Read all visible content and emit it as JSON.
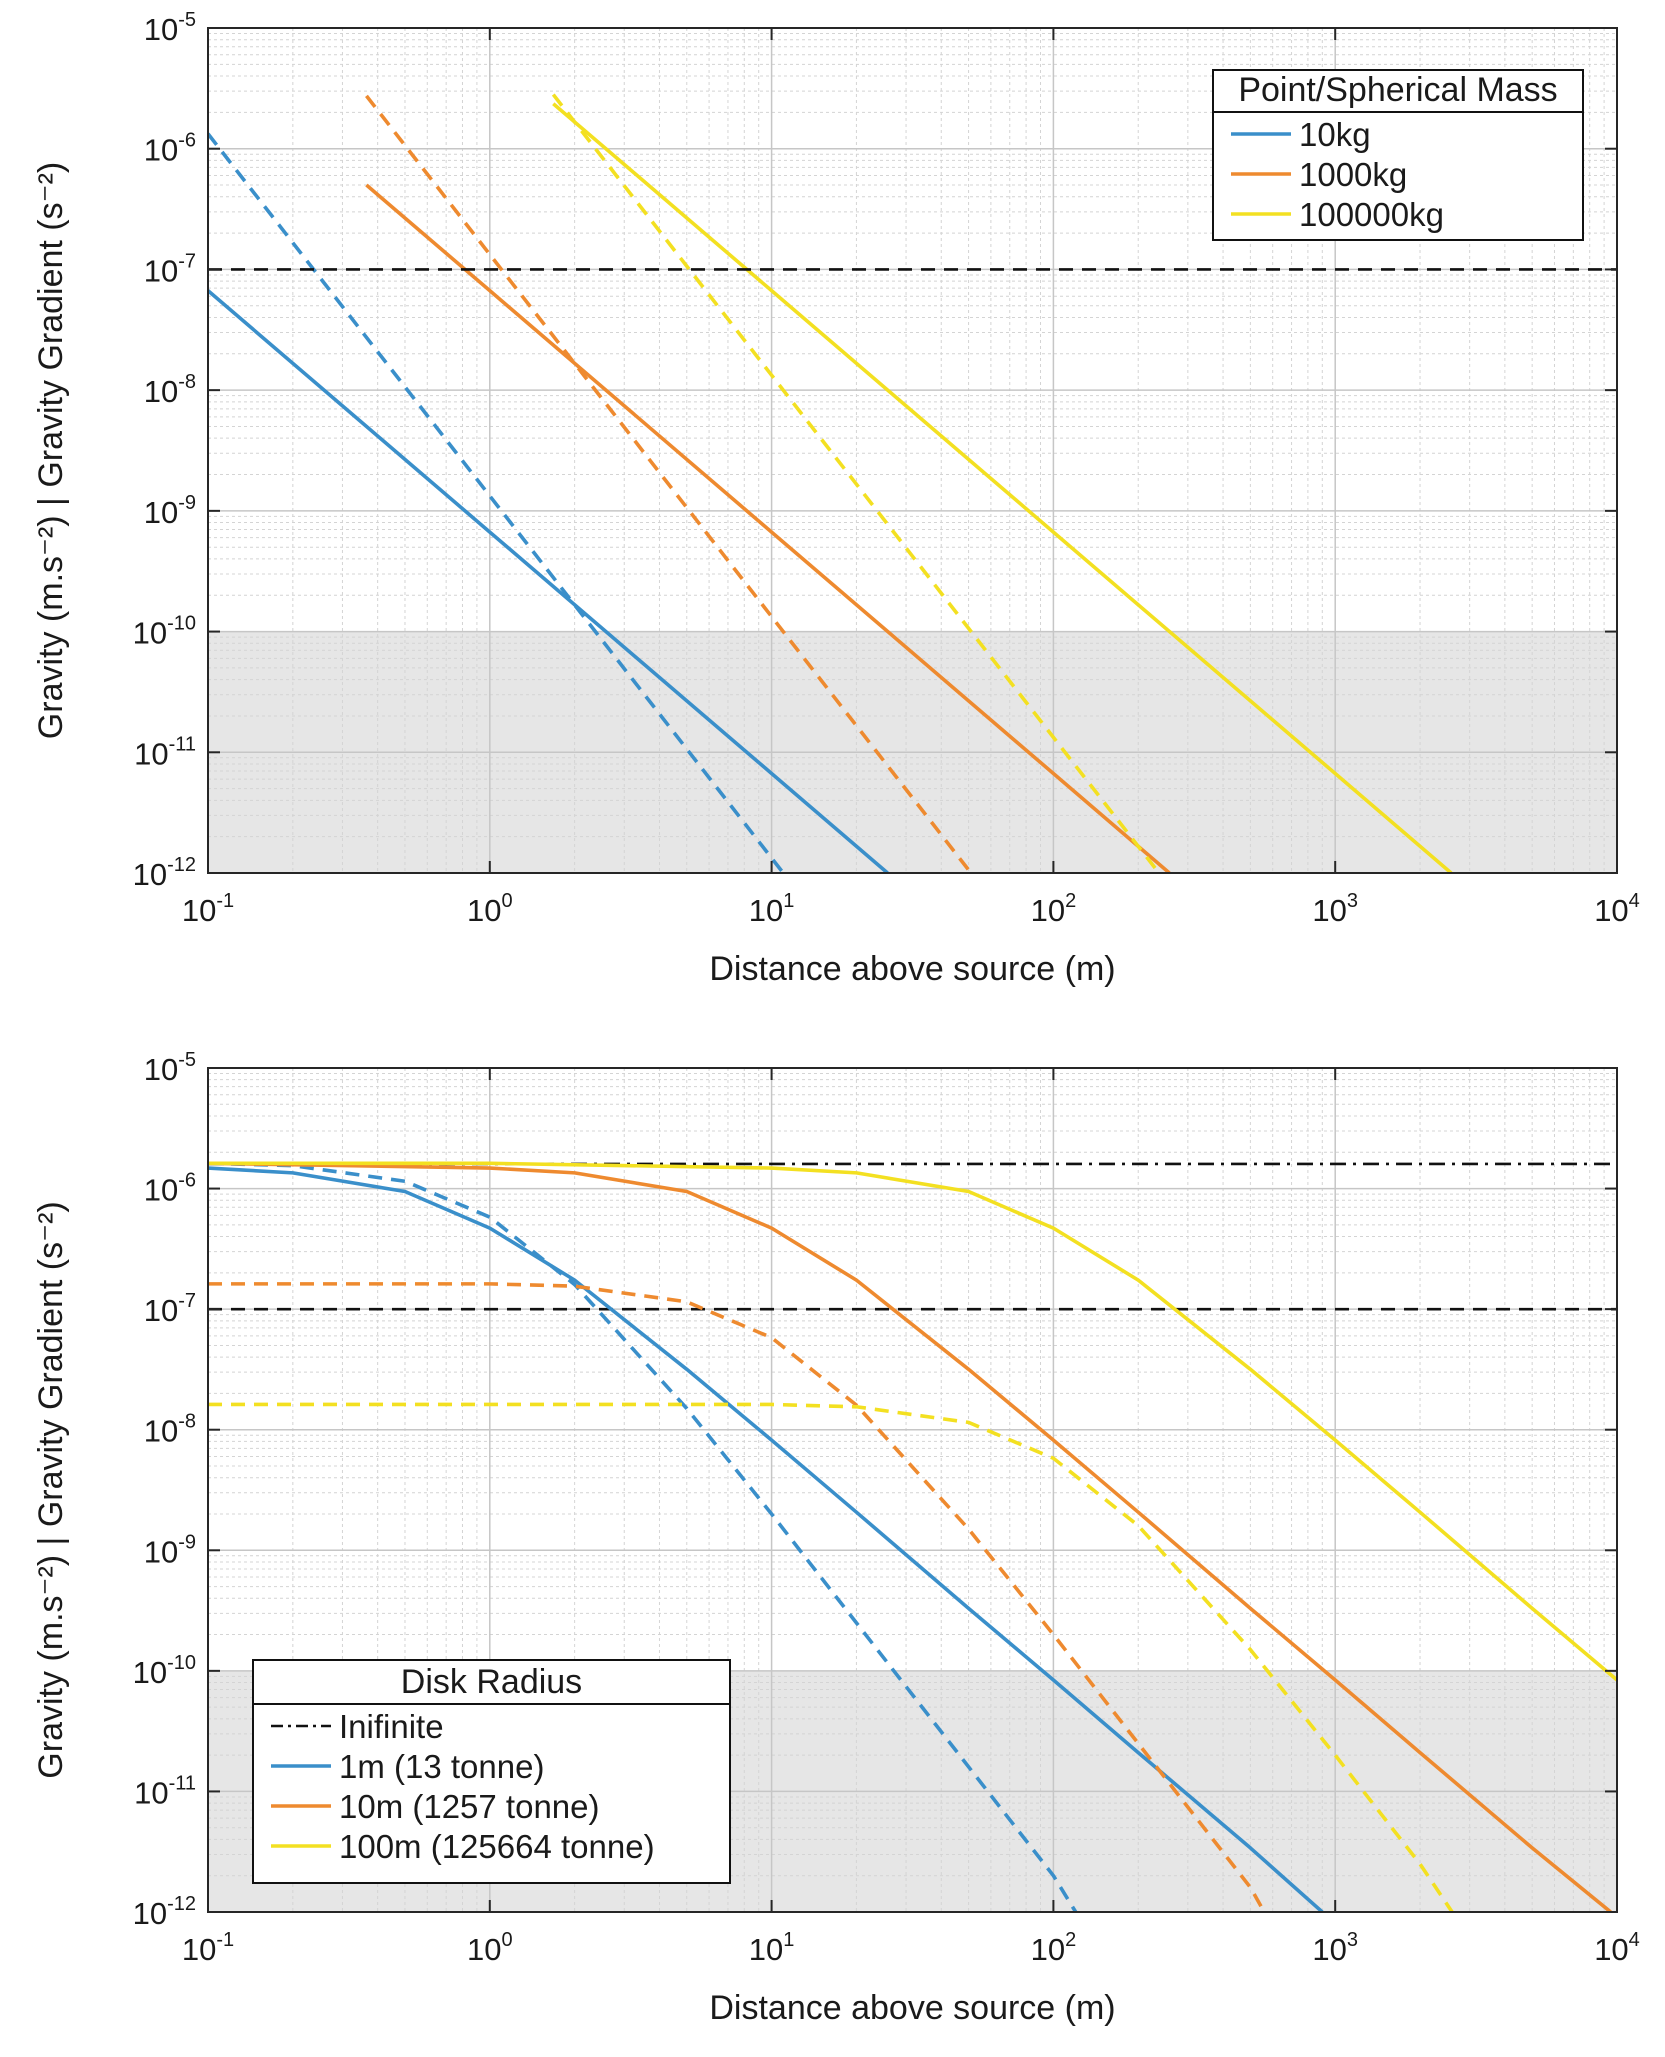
{
  "figure": {
    "colors": {
      "blue": "#3a8fca",
      "orange": "#ee8a2f",
      "yellow": "#f3e021",
      "reference": "#111111",
      "shade": "#e6e6e6"
    }
  },
  "chart_data": [
    {
      "type": "line",
      "xlabel": "Distance above source (m)",
      "ylabel": "Gravity (m.s⁻²) | Gravity Gradient (s⁻²)",
      "xscale": "log",
      "yscale": "log",
      "xlim": [
        0.1,
        10000
      ],
      "ylim": [
        1e-12,
        1e-05
      ],
      "xtick_labels": [
        {
          "base": "10",
          "exp": "-1"
        },
        {
          "base": "10",
          "exp": "0"
        },
        {
          "base": "10",
          "exp": "1"
        },
        {
          "base": "10",
          "exp": "2"
        },
        {
          "base": "10",
          "exp": "3"
        },
        {
          "base": "10",
          "exp": "4"
        }
      ],
      "ytick_labels": [
        {
          "base": "10",
          "exp": "-12"
        },
        {
          "base": "10",
          "exp": "-11"
        },
        {
          "base": "10",
          "exp": "-10"
        },
        {
          "base": "10",
          "exp": "-9"
        },
        {
          "base": "10",
          "exp": "-8"
        },
        {
          "base": "10",
          "exp": "-7"
        },
        {
          "base": "10",
          "exp": "-6"
        },
        {
          "base": "10",
          "exp": "-5"
        }
      ],
      "grid": true,
      "minor_grid": true,
      "shaded_band": {
        "y_from": 1e-12,
        "y_to": 1e-10
      },
      "legend": {
        "title": "Point/Spherical Mass",
        "placement": "top-right",
        "entries": [
          {
            "label": "10kg",
            "color": "blue",
            "style": "solid"
          },
          {
            "label": "1000kg",
            "color": "orange",
            "style": "solid"
          },
          {
            "label": "100000kg",
            "color": "yellow",
            "style": "solid"
          }
        ]
      },
      "series": [
        {
          "key": "10kg-gravity",
          "color": "blue",
          "style": "solid",
          "x": [
            0.1,
            1,
            10,
            25.8
          ],
          "y": [
            6.67e-08,
            6.67e-10,
            6.67e-12,
            1e-12
          ]
        },
        {
          "key": "10kg-gradient",
          "color": "blue",
          "style": "dashed",
          "x": [
            0.1,
            1,
            10,
            11.0
          ],
          "y": [
            1.33e-06,
            1.33e-09,
            1.33e-12,
            1e-12
          ]
        },
        {
          "key": "1000kg-gravity",
          "color": "orange",
          "style": "solid",
          "x": [
            0.365,
            1,
            10,
            100,
            258
          ],
          "y": [
            5e-07,
            6.67e-08,
            6.67e-10,
            6.67e-12,
            1e-12
          ]
        },
        {
          "key": "1000kg-gradient",
          "color": "orange",
          "style": "dashed",
          "x": [
            0.365,
            1,
            10,
            51
          ],
          "y": [
            2.74e-06,
            1.33e-07,
            1.33e-10,
            1e-12
          ]
        },
        {
          "key": "100000kg-gravity",
          "color": "yellow",
          "style": "solid",
          "x": [
            1.68,
            10,
            100,
            1000,
            2580
          ],
          "y": [
            2.36e-06,
            6.67e-08,
            6.67e-10,
            6.67e-12,
            1e-12
          ]
        },
        {
          "key": "100000kg-gradient",
          "color": "yellow",
          "style": "dashed",
          "x": [
            1.68,
            10,
            100,
            237
          ],
          "y": [
            2.81e-06,
            1.33e-08,
            1.33e-11,
            1e-12
          ]
        },
        {
          "key": "reference",
          "color": "reference",
          "style": "dashed",
          "x": [
            0.1,
            10000
          ],
          "y": [
            1e-07,
            1e-07
          ]
        }
      ]
    },
    {
      "type": "line",
      "xlabel": "Distance above source (m)",
      "ylabel": "Gravity (m.s⁻²) | Gravity Gradient (s⁻²)",
      "xscale": "log",
      "yscale": "log",
      "xlim": [
        0.1,
        10000
      ],
      "ylim": [
        1e-12,
        1e-05
      ],
      "xtick_labels": [
        {
          "base": "10",
          "exp": "-1"
        },
        {
          "base": "10",
          "exp": "0"
        },
        {
          "base": "10",
          "exp": "1"
        },
        {
          "base": "10",
          "exp": "2"
        },
        {
          "base": "10",
          "exp": "3"
        },
        {
          "base": "10",
          "exp": "4"
        }
      ],
      "ytick_labels": [
        {
          "base": "10",
          "exp": "-12"
        },
        {
          "base": "10",
          "exp": "-11"
        },
        {
          "base": "10",
          "exp": "-10"
        },
        {
          "base": "10",
          "exp": "-9"
        },
        {
          "base": "10",
          "exp": "-8"
        },
        {
          "base": "10",
          "exp": "-7"
        },
        {
          "base": "10",
          "exp": "-6"
        },
        {
          "base": "10",
          "exp": "-5"
        }
      ],
      "grid": true,
      "minor_grid": true,
      "shaded_band": {
        "y_from": 1e-12,
        "y_to": 1e-10
      },
      "legend": {
        "title": "Disk Radius",
        "placement": "bottom-left",
        "entries": [
          {
            "label": "Inifinite",
            "color": "reference",
            "style": "dashdot"
          },
          {
            "label": "1m (13 tonne)",
            "color": "blue",
            "style": "solid"
          },
          {
            "label": "10m (1257 tonne)",
            "color": "orange",
            "style": "solid"
          },
          {
            "label": "100m (125664 tonne)",
            "color": "yellow",
            "style": "solid"
          }
        ]
      },
      "series": [
        {
          "key": "infinite-disk",
          "color": "reference",
          "style": "dashdot",
          "x": [
            0.1,
            10000
          ],
          "y": [
            1.6e-06,
            1.6e-06
          ]
        },
        {
          "key": "reference",
          "color": "reference",
          "style": "dashed",
          "x": [
            0.1,
            10000
          ],
          "y": [
            1e-07,
            1e-07
          ]
        },
        {
          "key": "1m-gravity",
          "color": "blue",
          "style": "solid",
          "x": [
            0.1,
            0.2,
            0.5,
            1,
            2,
            5,
            10,
            20,
            50,
            100,
            200,
            500,
            900
          ],
          "y": [
            1.48e-06,
            1.35e-06,
            9.45e-07,
            4.7e-07,
            1.74e-07,
            3.17e-08,
            8.2e-09,
            2.07e-09,
            3.3e-10,
            8.4e-11,
            2.1e-11,
            3.4e-12,
            1e-12
          ]
        },
        {
          "key": "1m-gradient",
          "color": "blue",
          "style": "dashed",
          "x": [
            0.1,
            0.2,
            0.5,
            1,
            2,
            5,
            10,
            20,
            50,
            100,
            120
          ],
          "y": [
            1.62e-06,
            1.55e-06,
            1.15e-06,
            5.8e-07,
            1.6e-07,
            1.5e-08,
            2e-09,
            2.5e-10,
            1.6e-11,
            2e-12,
            1e-12
          ]
        },
        {
          "key": "10m-gravity",
          "color": "orange",
          "style": "solid",
          "x": [
            0.1,
            1,
            2,
            5,
            10,
            20,
            50,
            100,
            200,
            500,
            1000,
            2000,
            5000,
            9500
          ],
          "y": [
            1.62e-06,
            1.48e-06,
            1.35e-06,
            9.45e-07,
            4.7e-07,
            1.74e-07,
            3.17e-08,
            8.2e-09,
            2.07e-09,
            3.3e-10,
            8.4e-11,
            2.1e-11,
            3.4e-12,
            1e-12
          ]
        },
        {
          "key": "10m-gradient",
          "color": "orange",
          "style": "dashed",
          "x": [
            0.1,
            1,
            2,
            5,
            10,
            20,
            50,
            100,
            200,
            500,
            560
          ],
          "y": [
            1.62e-07,
            1.62e-07,
            1.55e-07,
            1.15e-07,
            5.8e-08,
            1.6e-08,
            1.5e-09,
            2e-10,
            2.5e-11,
            1.6e-12,
            1e-12
          ]
        },
        {
          "key": "100m-gravity",
          "color": "yellow",
          "style": "solid",
          "x": [
            0.1,
            1,
            10,
            20,
            50,
            100,
            200,
            500,
            1000,
            2000,
            5000,
            10000
          ],
          "y": [
            1.62e-06,
            1.62e-06,
            1.48e-06,
            1.35e-06,
            9.45e-07,
            4.7e-07,
            1.74e-07,
            3.17e-08,
            8.2e-09,
            2.07e-09,
            3.3e-10,
            8.4e-11
          ]
        },
        {
          "key": "100m-gradient",
          "color": "yellow",
          "style": "dashed",
          "x": [
            0.1,
            1,
            10,
            20,
            50,
            100,
            200,
            500,
            1000,
            2000,
            2600
          ],
          "y": [
            1.62e-08,
            1.62e-08,
            1.62e-08,
            1.55e-08,
            1.15e-08,
            5.8e-09,
            1.6e-09,
            1.5e-10,
            2e-11,
            2.5e-12,
            1e-12
          ]
        }
      ]
    }
  ]
}
